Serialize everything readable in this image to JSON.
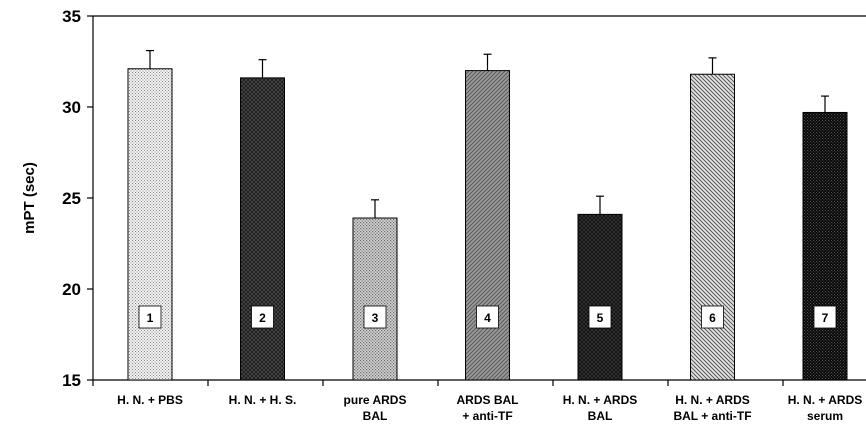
{
  "chart_data": {
    "type": "bar",
    "title": "",
    "xlabel": "",
    "ylabel": "mPT (sec)",
    "ylim": [
      15,
      35
    ],
    "yticks": [
      "15",
      "20",
      "25",
      "30",
      "35"
    ],
    "grid": false,
    "categories": [
      [
        "H. N. + PBS"
      ],
      [
        "H. N. + H. S."
      ],
      [
        "pure ARDS",
        "BAL"
      ],
      [
        "ARDS BAL",
        "+ anti-TF"
      ],
      [
        "H. N. + ARDS",
        "BAL"
      ],
      [
        "H. N. + ARDS",
        "BAL + anti-TF"
      ],
      [
        "H. N. + ARDS",
        "serum"
      ]
    ],
    "bar_numbers": [
      "1",
      "2",
      "3",
      "4",
      "5",
      "6",
      "7"
    ],
    "values": [
      32.1,
      31.6,
      23.9,
      32.0,
      24.1,
      31.8,
      29.7
    ],
    "errors": [
      1.0,
      1.0,
      1.0,
      0.9,
      1.0,
      0.9,
      0.9
    ],
    "fills": [
      "dots-light",
      "crosshatch-dark",
      "dots-medium",
      "hatch-gray",
      "crosshatch-darker",
      "hatch-light",
      "dots-black"
    ],
    "colors": {
      "axis": "#000000",
      "bar_outline": "#000000",
      "number_box_fill": "#ffffff"
    }
  }
}
